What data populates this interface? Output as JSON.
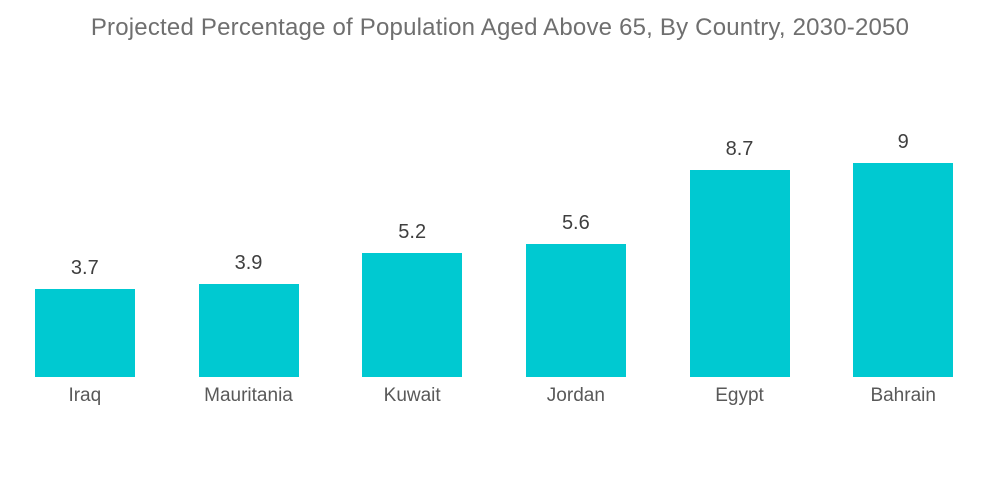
{
  "chart_data": {
    "type": "bar",
    "title": "Projected Percentage of Population Aged Above 65, By Country, 2030-2050",
    "categories": [
      "Iraq",
      "Mauritania",
      "Kuwait",
      "Jordan",
      "Egypt",
      "Bahrain"
    ],
    "values": [
      3.7,
      3.9,
      5.2,
      5.6,
      8.7,
      9
    ],
    "value_labels": [
      "3.7",
      "3.9",
      "5.2",
      "5.6",
      "8.7",
      "9"
    ],
    "xlabel": "",
    "ylabel": "",
    "ylim": [
      0,
      10
    ],
    "grid": false,
    "legend": "none",
    "axes_visible": false,
    "data_label_position": "above-bar",
    "bar_color": "#00c9d1"
  },
  "colors": {
    "background": "#ffffff",
    "bar": "#00c9d1",
    "title_text": "#6f6f6f",
    "value_text": "#3f3f3f",
    "category_text": "#595959"
  }
}
